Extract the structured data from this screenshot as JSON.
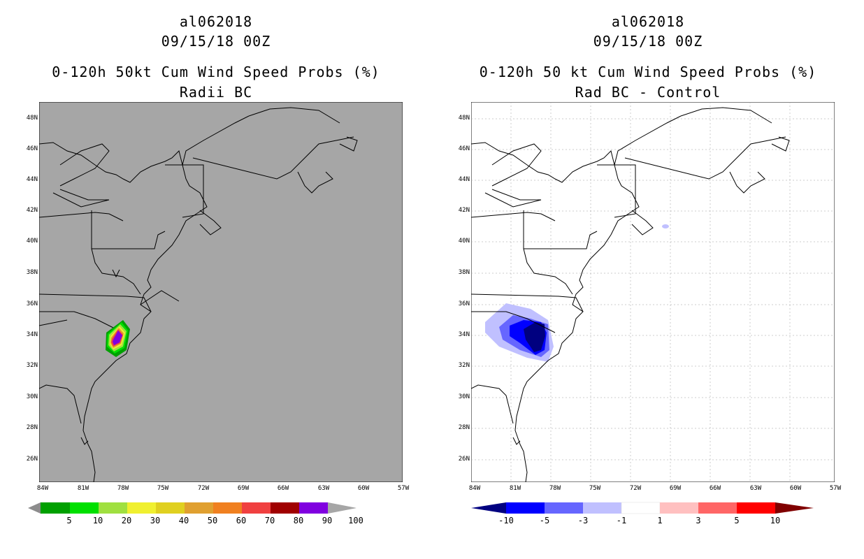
{
  "left_panel": {
    "title_line1": "al062018",
    "title_line2": "09/15/18 00Z",
    "title_line3": "0-120h 50kt Cum Wind Speed Probs (%)",
    "title_line4": "Radii BC",
    "map_background": "#a6a6a6",
    "colorbar": {
      "colors": [
        "#8c8c8c",
        "#00a000",
        "#00e000",
        "#a0e040",
        "#f0f030",
        "#e0d020",
        "#e0a030",
        "#f08020",
        "#f04040",
        "#a00000",
        "#8000e0",
        "#a6a6a6"
      ],
      "labels": [
        "5",
        "10",
        "20",
        "30",
        "40",
        "50",
        "60",
        "70",
        "80",
        "90",
        "100"
      ]
    }
  },
  "right_panel": {
    "title_line1": "al062018",
    "title_line2": "09/15/18 00Z",
    "title_line3": "0-120h 50 kt Cum Wind Speed Probs (%)",
    "title_line4": "Rad BC - Control",
    "map_background": "#ffffff",
    "colorbar": {
      "colors": [
        "#000080",
        "#0000ff",
        "#6666ff",
        "#c0c0ff",
        "#ffffff",
        "#ffc0c0",
        "#ff6666",
        "#ff0000",
        "#800000"
      ],
      "labels": [
        "-10",
        "-5",
        "-3",
        "-1",
        "1",
        "3",
        "5",
        "10"
      ]
    }
  },
  "axes": {
    "lat_labels": [
      "48N",
      "46N",
      "44N",
      "42N",
      "40N",
      "38N",
      "36N",
      "34N",
      "32N",
      "30N",
      "28N",
      "26N"
    ],
    "lon_labels": [
      "84W",
      "81W",
      "78W",
      "75W",
      "72W",
      "69W",
      "66W",
      "63W",
      "60W",
      "57W"
    ]
  }
}
